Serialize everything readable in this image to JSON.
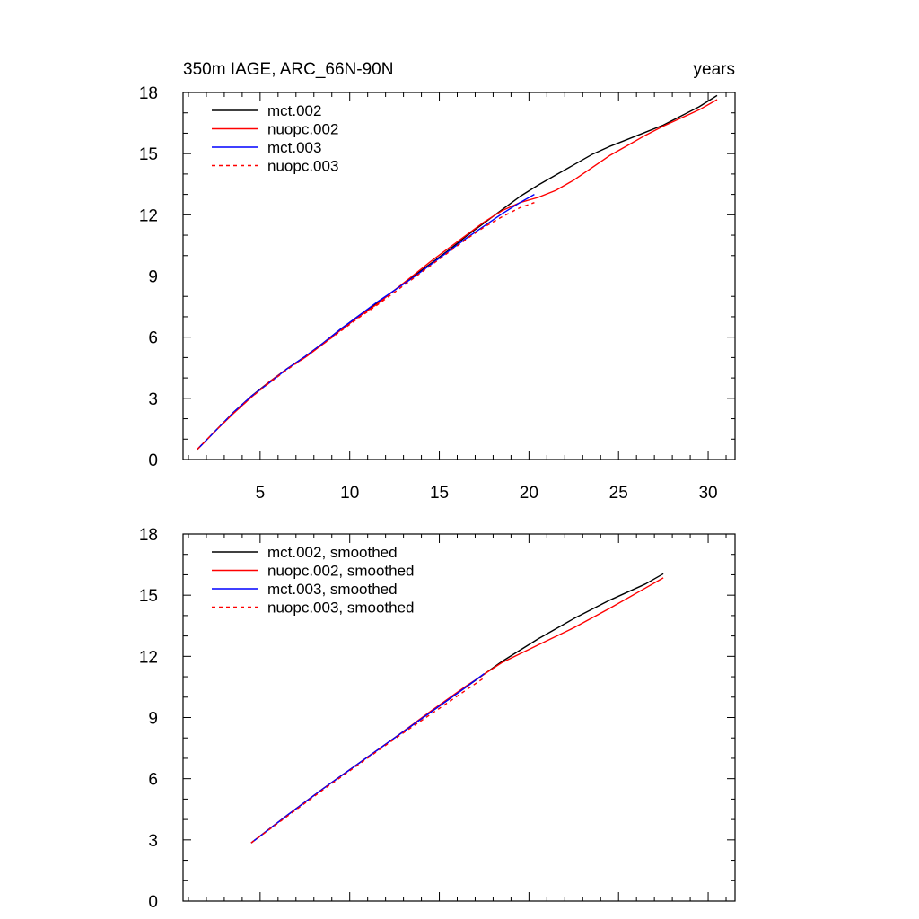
{
  "figure": {
    "title_left": "350m IAGE, ARC_66N-90N",
    "title_right": "years"
  },
  "chart_data": [
    {
      "type": "line",
      "title": "350m IAGE, ARC_66N-90N",
      "units": "years",
      "xlabel": "",
      "ylabel": "",
      "xlim": [
        0.7,
        31.5
      ],
      "ylim": [
        0,
        18
      ],
      "xticks": [
        5,
        10,
        15,
        20,
        25,
        30
      ],
      "yticks": [
        0,
        3,
        6,
        9,
        12,
        15,
        18
      ],
      "xtick_labels_shown": true,
      "grid": false,
      "legend_position": "top-left",
      "series": [
        {
          "name": "mct.002",
          "color": "#000000",
          "dash": "solid",
          "x": [
            1.5,
            2.5,
            3.5,
            4.5,
            5.5,
            6.5,
            7.5,
            8.5,
            9.5,
            10.5,
            11.5,
            12.5,
            13.5,
            14.5,
            15.5,
            16.5,
            17.5,
            18.5,
            19.5,
            20.5,
            21.5,
            22.5,
            23.5,
            24.5,
            25.5,
            26.5,
            27.5,
            28.5,
            29.5,
            30.5
          ],
          "y": [
            0.5,
            1.4,
            2.3,
            3.1,
            3.8,
            4.45,
            5.05,
            5.7,
            6.4,
            7.05,
            7.65,
            8.3,
            8.95,
            9.6,
            10.25,
            10.95,
            11.6,
            12.25,
            12.9,
            13.45,
            13.95,
            14.45,
            14.95,
            15.35,
            15.7,
            16.05,
            16.4,
            16.85,
            17.3,
            17.85
          ]
        },
        {
          "name": "nuopc.002",
          "color": "#ff0000",
          "dash": "solid",
          "x": [
            1.5,
            2.5,
            3.5,
            4.5,
            5.5,
            6.5,
            7.5,
            8.5,
            9.5,
            10.5,
            11.5,
            12.5,
            13.5,
            14.5,
            15.5,
            16.5,
            17.5,
            18.5,
            19.5,
            20.5,
            21.5,
            22.5,
            23.5,
            24.5,
            25.5,
            26.5,
            27.5,
            28.5,
            29.5,
            30.5
          ],
          "y": [
            0.5,
            1.4,
            2.25,
            3.05,
            3.8,
            4.45,
            5.0,
            5.65,
            6.35,
            7.0,
            7.6,
            8.3,
            9.0,
            9.7,
            10.35,
            11.0,
            11.65,
            12.2,
            12.6,
            12.85,
            13.2,
            13.7,
            14.3,
            14.9,
            15.4,
            15.9,
            16.35,
            16.75,
            17.15,
            17.65
          ]
        },
        {
          "name": "mct.003",
          "color": "#0000ff",
          "dash": "solid",
          "x": [
            1.5,
            2.5,
            3.5,
            4.5,
            5.5,
            6.5,
            7.5,
            8.5,
            9.5,
            10.5,
            11.5,
            12.5,
            13.5,
            14.5,
            15.5,
            16.5,
            17.5,
            18.5,
            19.5,
            20.3
          ],
          "y": [
            0.5,
            1.4,
            2.3,
            3.1,
            3.75,
            4.45,
            5.05,
            5.7,
            6.4,
            7.05,
            7.7,
            8.3,
            8.9,
            9.55,
            10.2,
            10.85,
            11.45,
            12.05,
            12.6,
            13.0
          ]
        },
        {
          "name": "nuopc.003",
          "color": "#ff0000",
          "dash": "dashed",
          "x": [
            1.5,
            2.5,
            3.5,
            4.5,
            5.5,
            6.5,
            7.5,
            8.5,
            9.5,
            10.5,
            11.5,
            12.5,
            13.5,
            14.5,
            15.5,
            16.5,
            17.5,
            18.5,
            19.5,
            20.3
          ],
          "y": [
            0.5,
            1.4,
            2.25,
            3.05,
            3.75,
            4.4,
            5.0,
            5.65,
            6.3,
            6.95,
            7.55,
            8.2,
            8.85,
            9.5,
            10.15,
            10.8,
            11.4,
            11.9,
            12.35,
            12.6
          ]
        }
      ]
    },
    {
      "type": "line",
      "xlabel": "",
      "ylabel": "",
      "xlim": [
        0.7,
        31.5
      ],
      "ylim": [
        0,
        18
      ],
      "xticks": [
        5,
        10,
        15,
        20,
        25,
        30
      ],
      "yticks": [
        0,
        3,
        6,
        9,
        12,
        15,
        18
      ],
      "xtick_labels_shown": false,
      "grid": false,
      "legend_position": "top-left",
      "series": [
        {
          "name": "mct.002, smoothed",
          "color": "#000000",
          "dash": "solid",
          "x": [
            4.5,
            6.5,
            8.5,
            10.5,
            12.5,
            14.5,
            16.5,
            18.5,
            20.5,
            22.5,
            24.5,
            26.5,
            27.5
          ],
          "y": [
            2.85,
            4.2,
            5.5,
            6.75,
            8.0,
            9.25,
            10.5,
            11.75,
            12.85,
            13.85,
            14.75,
            15.55,
            16.05
          ]
        },
        {
          "name": "nuopc.002, smoothed",
          "color": "#ff0000",
          "dash": "solid",
          "x": [
            4.5,
            6.5,
            8.5,
            10.5,
            12.5,
            14.5,
            16.5,
            18.5,
            20.5,
            22.5,
            24.5,
            26.5,
            27.5
          ],
          "y": [
            2.85,
            4.2,
            5.5,
            6.75,
            8.0,
            9.3,
            10.55,
            11.7,
            12.55,
            13.4,
            14.35,
            15.35,
            15.85
          ]
        },
        {
          "name": "mct.003, smoothed",
          "color": "#0000ff",
          "dash": "solid",
          "x": [
            4.5,
            6.5,
            8.5,
            10.5,
            12.5,
            14.5,
            16.5,
            17.5
          ],
          "y": [
            2.85,
            4.2,
            5.5,
            6.75,
            8.0,
            9.25,
            10.5,
            11.15
          ]
        },
        {
          "name": "nuopc.003, smoothed",
          "color": "#ff0000",
          "dash": "dashed",
          "x": [
            4.5,
            6.5,
            8.5,
            10.5,
            12.5,
            14.5,
            16.5,
            17.5
          ],
          "y": [
            2.85,
            4.15,
            5.45,
            6.7,
            7.95,
            9.15,
            10.35,
            10.95
          ]
        }
      ]
    }
  ]
}
